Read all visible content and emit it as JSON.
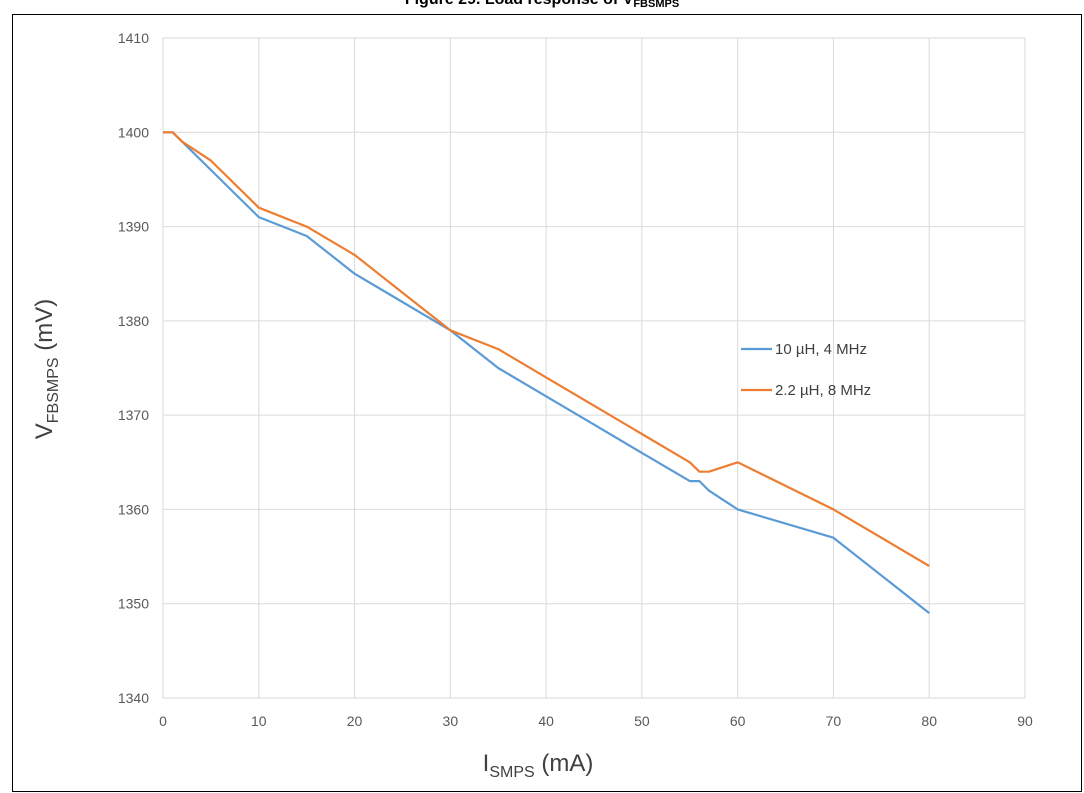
{
  "chart_data": {
    "type": "line",
    "title": {
      "prefix": "Figure 29. Load response of V",
      "subscript": "FBSMPS",
      "suffix": ""
    },
    "xlabel": {
      "main": "I",
      "sub": "SMPS",
      "unit": " (mA)"
    },
    "ylabel": {
      "main": "V",
      "sub": "FBSMPS",
      "unit": " (mV)"
    },
    "xlim": [
      0,
      90
    ],
    "ylim": [
      1340,
      1410
    ],
    "xticks": [
      0,
      10,
      20,
      30,
      40,
      50,
      60,
      70,
      80,
      90
    ],
    "yticks": [
      1340,
      1350,
      1360,
      1370,
      1380,
      1390,
      1400,
      1410
    ],
    "grid": true,
    "legend_position": "right-center",
    "series": [
      {
        "name": "10 µH, 4 MHz",
        "color": "#5b9bd5",
        "x": [
          0,
          1,
          2,
          5,
          10,
          15,
          20,
          25,
          30,
          35,
          40,
          45,
          50,
          55,
          56,
          57,
          60,
          70,
          80
        ],
        "y": [
          1400,
          1400,
          1399,
          1396,
          1391,
          1389,
          1385,
          1382,
          1379,
          1375,
          1372,
          1369,
          1366,
          1363,
          1363,
          1362,
          1360,
          1357,
          1349
        ]
      },
      {
        "name": "2.2 µH, 8 MHz",
        "color": "#ed7d31",
        "x": [
          0,
          1,
          2,
          5,
          10,
          15,
          20,
          25,
          30,
          35,
          40,
          45,
          50,
          55,
          56,
          57,
          60,
          70,
          80
        ],
        "y": [
          1400,
          1400,
          1399,
          1397,
          1392,
          1390,
          1387,
          1383,
          1379,
          1377,
          1374,
          1371,
          1368,
          1365,
          1364,
          1364,
          1365,
          1360,
          1354
        ]
      }
    ]
  }
}
